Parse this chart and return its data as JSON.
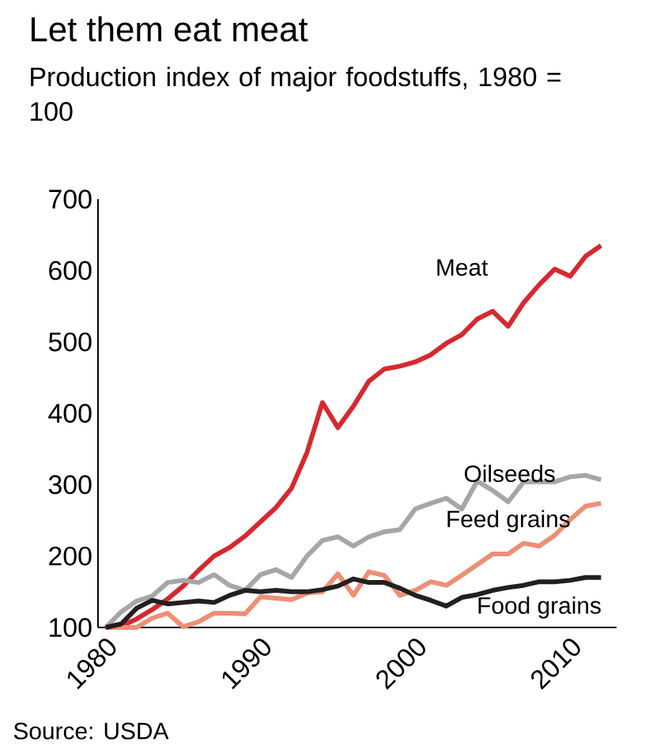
{
  "chart_data": {
    "type": "line",
    "title": "Let them eat meat",
    "subtitle": "Production index of major foodstuffs, 1980 = 100",
    "x": [
      1980,
      1981,
      1982,
      1983,
      1984,
      1985,
      1986,
      1987,
      1988,
      1989,
      1990,
      1991,
      1992,
      1993,
      1994,
      1995,
      1996,
      1997,
      1998,
      1999,
      2000,
      2001,
      2002,
      2003,
      2004,
      2005,
      2006,
      2007,
      2008,
      2009,
      2010,
      2011,
      2012
    ],
    "series": [
      {
        "name": "Meat",
        "color": "#d7282f",
        "values": [
          100,
          102,
          112,
          125,
          140,
          158,
          180,
          200,
          212,
          228,
          248,
          268,
          295,
          345,
          415,
          380,
          410,
          445,
          462,
          466,
          472,
          482,
          498,
          510,
          532,
          543,
          522,
          555,
          580,
          602,
          592,
          620,
          635
        ]
      },
      {
        "name": "Oilseeds",
        "color": "#a6a6a8",
        "values": [
          100,
          122,
          137,
          144,
          163,
          166,
          163,
          174,
          159,
          152,
          174,
          181,
          170,
          200,
          222,
          227,
          214,
          227,
          234,
          237,
          266,
          274,
          281,
          266,
          305,
          292,
          276,
          304,
          304,
          304,
          311,
          313,
          307
        ]
      },
      {
        "name": "Feed grains",
        "color": "#ec8f76",
        "values": [
          100,
          100,
          100,
          113,
          120,
          101,
          108,
          120,
          120,
          119,
          143,
          141,
          139,
          148,
          150,
          175,
          145,
          178,
          173,
          145,
          152,
          164,
          159,
          173,
          188,
          203,
          203,
          218,
          214,
          229,
          251,
          270,
          274
        ]
      },
      {
        "name": "Food grains",
        "color": "#231f20",
        "values": [
          100,
          105,
          127,
          138,
          133,
          135,
          137,
          135,
          145,
          152,
          150,
          152,
          150,
          150,
          153,
          158,
          168,
          163,
          163,
          155,
          145,
          138,
          130,
          142,
          146,
          152,
          156,
          159,
          164,
          164,
          166,
          170,
          170
        ]
      }
    ],
    "xlim": [
      1979.5,
      2013
    ],
    "ylim": [
      100,
      700
    ],
    "xticks": [
      1980,
      1990,
      2000,
      2010
    ],
    "yticks": [
      100,
      200,
      300,
      400,
      500,
      600,
      700
    ],
    "grid": false,
    "marker": "none",
    "line_style": "solid",
    "annotations": [
      "Source: USDA"
    ]
  }
}
